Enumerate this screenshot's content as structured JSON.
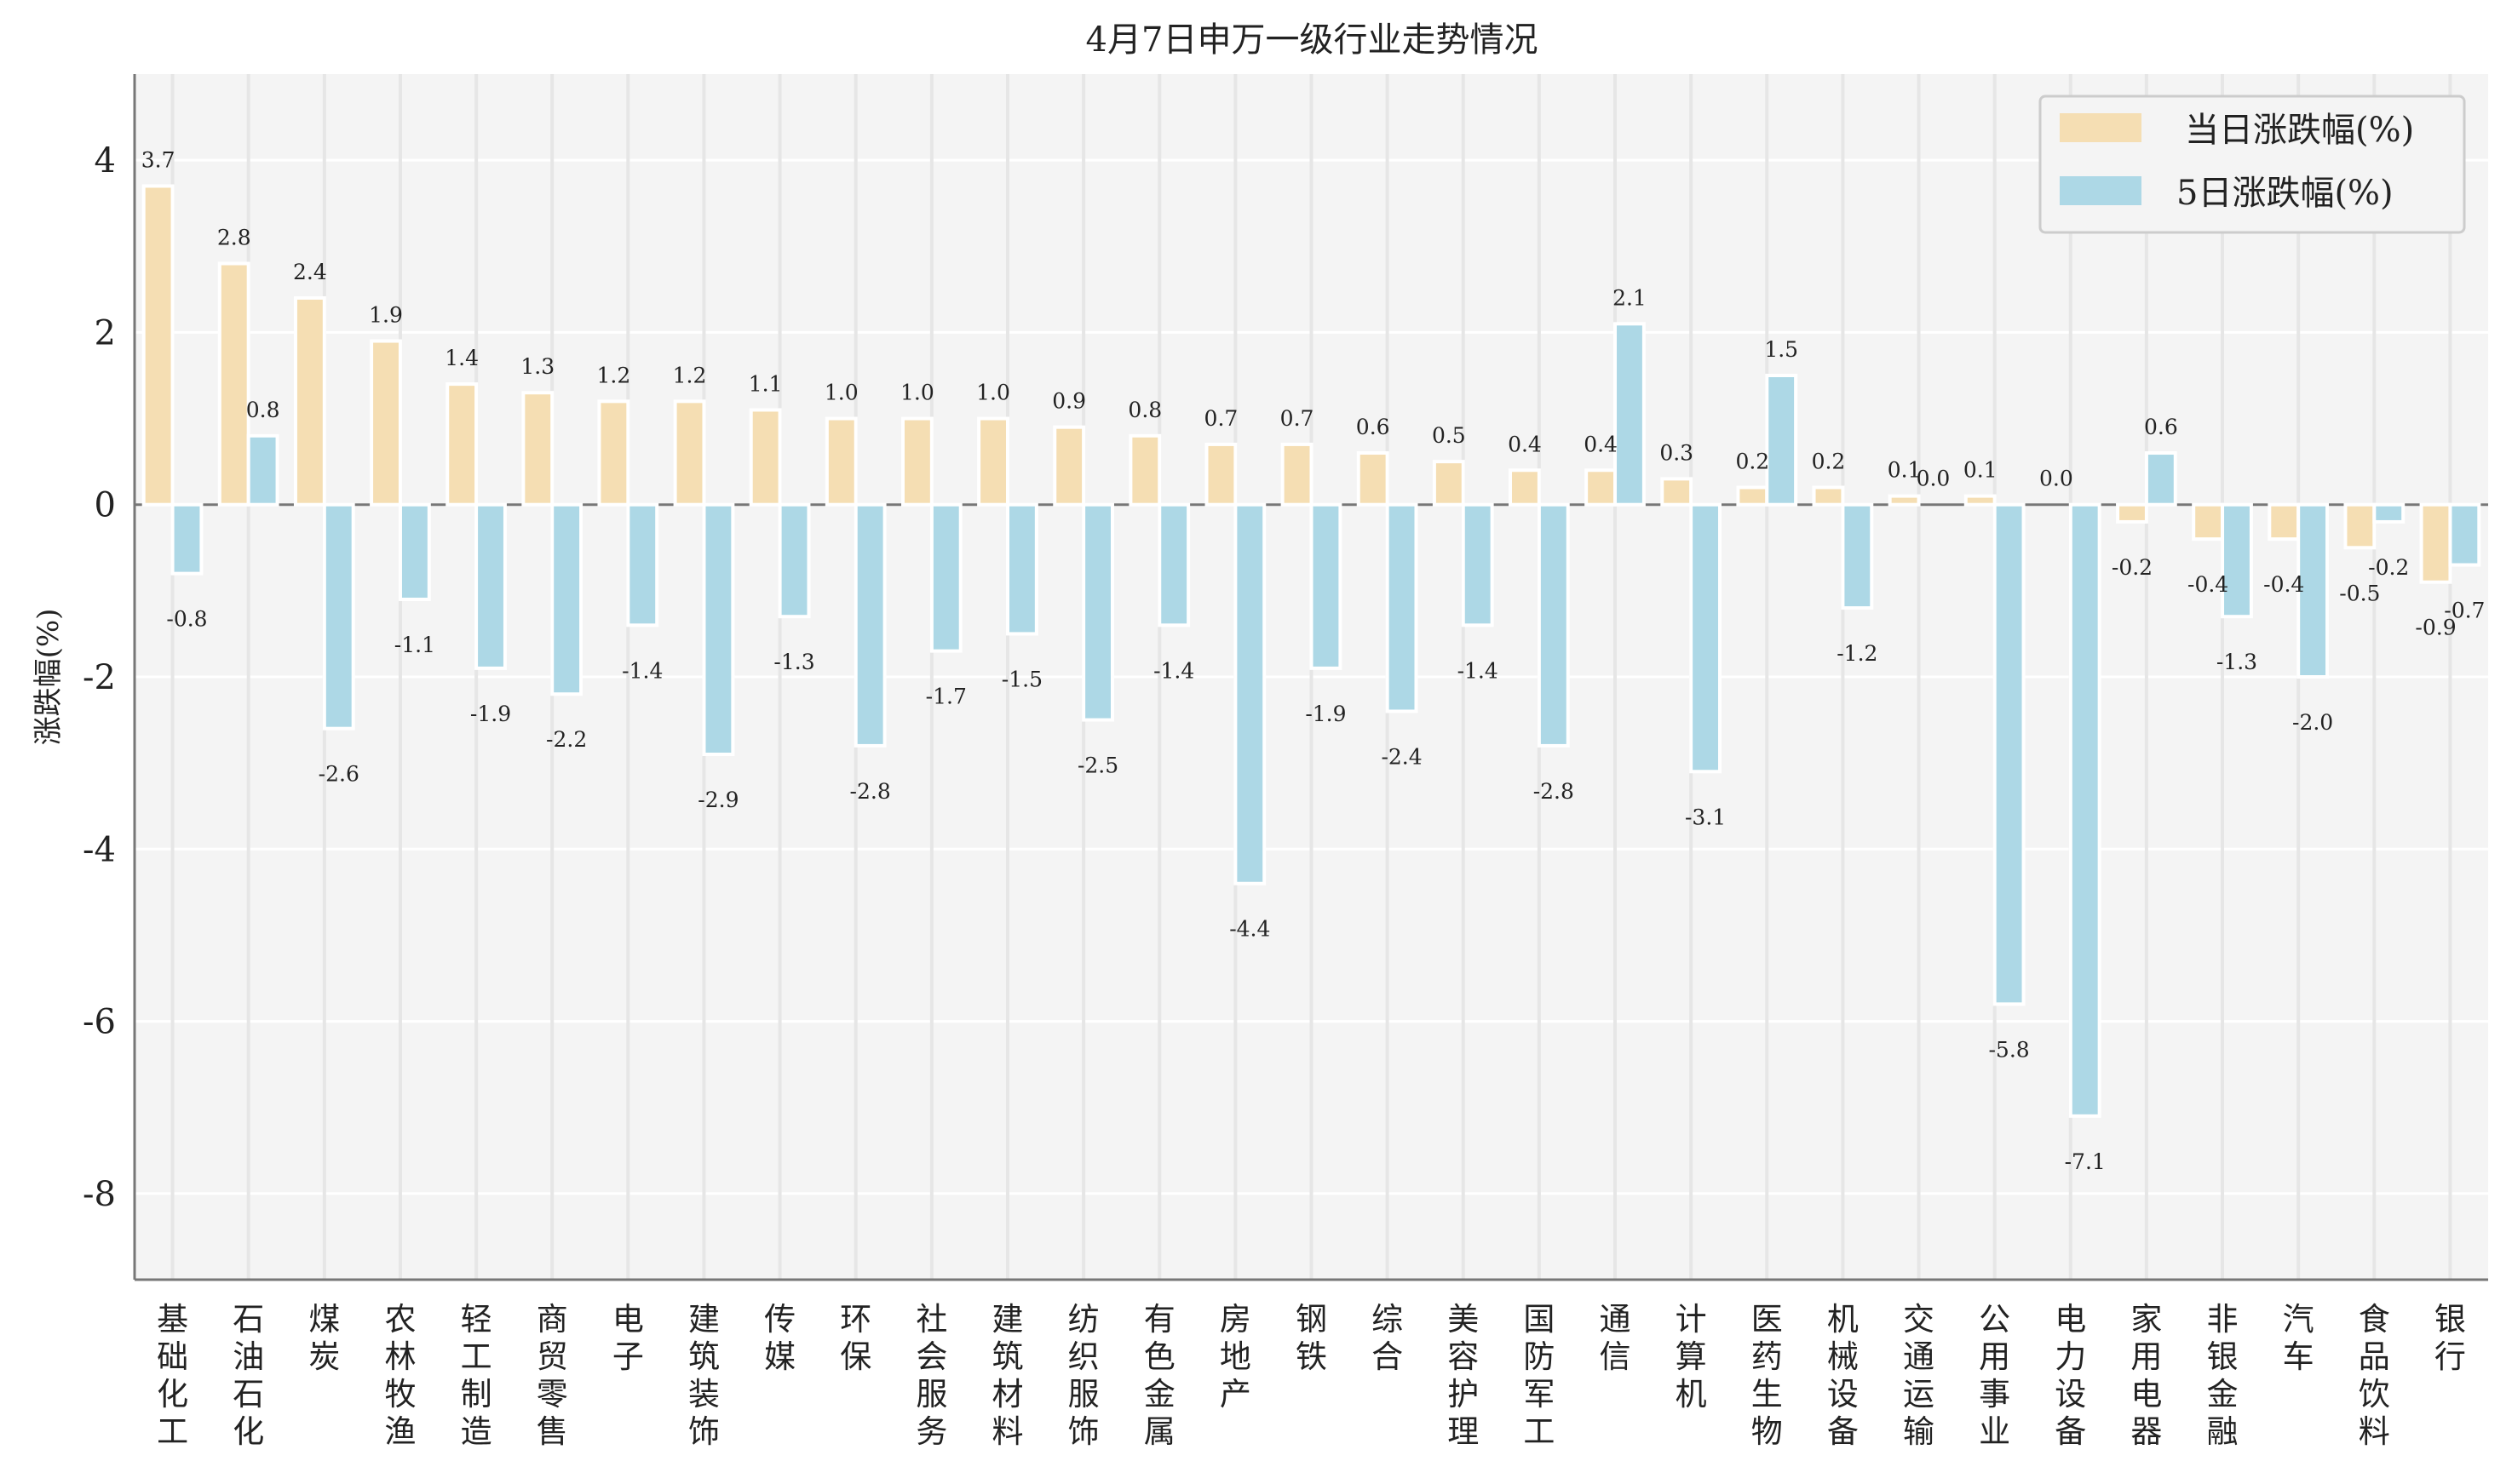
{
  "chart_data": {
    "type": "bar",
    "title": "4月7日申万一级行业走势情况",
    "xlabel": "",
    "ylabel": "涨跌幅(%)",
    "ylim": [
      -9,
      5
    ],
    "yticks": [
      -8,
      -6,
      -4,
      -2,
      0,
      2,
      4
    ],
    "grid": true,
    "legend_position": "top-right",
    "categories": [
      "基础化工",
      "石油石化",
      "煤炭",
      "农林牧渔",
      "轻工制造",
      "商贸零售",
      "电子",
      "建筑装饰",
      "传媒",
      "环保",
      "社会服务",
      "建筑材料",
      "纺织服饰",
      "有色金属",
      "房地产",
      "钢铁",
      "综合",
      "美容护理",
      "国防军工",
      "通信",
      "计算机",
      "医药生物",
      "机械设备",
      "交通运输",
      "公用事业",
      "电力设备",
      "家用电器",
      "非银金融",
      "汽车",
      "食品饮料",
      "银行"
    ],
    "series": [
      {
        "name": "当日涨跌幅(%)",
        "color": "#f5deb3",
        "values": [
          3.7,
          2.8,
          2.4,
          1.9,
          1.4,
          1.3,
          1.2,
          1.2,
          1.1,
          1.0,
          1.0,
          1.0,
          0.9,
          0.8,
          0.7,
          0.7,
          0.6,
          0.5,
          0.4,
          0.4,
          0.3,
          0.2,
          0.2,
          0.1,
          0.1,
          0.0,
          -0.2,
          -0.4,
          -0.4,
          -0.5,
          -0.9
        ]
      },
      {
        "name": "5日涨跌幅(%)",
        "color": "#add8e6",
        "values": [
          -0.8,
          0.8,
          -2.6,
          -1.1,
          -1.9,
          -2.2,
          -1.4,
          -2.9,
          -1.3,
          -2.8,
          -1.7,
          -1.5,
          -2.5,
          -1.4,
          -4.4,
          -1.9,
          -2.4,
          -1.4,
          -2.8,
          2.1,
          -3.1,
          1.5,
          -1.2,
          0.0,
          -5.8,
          -7.1,
          0.6,
          -1.3,
          -2.0,
          -0.2,
          -0.7
        ]
      }
    ]
  }
}
